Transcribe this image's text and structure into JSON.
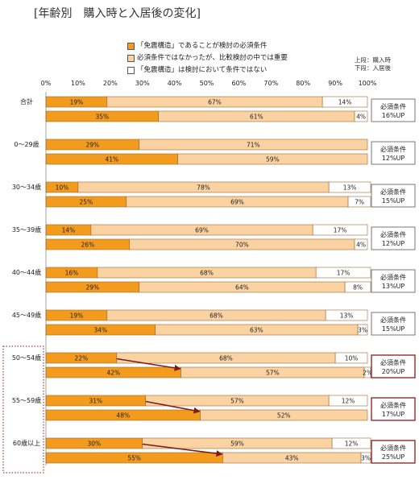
{
  "title": "[年齢別　購入時と入居後の変化]",
  "note": {
    "line1": "上段：購入時",
    "line2": "下段：入居後"
  },
  "colors": {
    "required": "#f39b1d",
    "important": "#fbd3a3",
    "not_considered": "#ffffff",
    "border": "#9a6a30",
    "arrow": "#7b1c1c",
    "highlight_box": "#8b1a1a"
  },
  "chart_data": {
    "type": "bar",
    "orientation": "horizontal-stacked",
    "xlim": [
      0,
      100
    ],
    "xticks": [
      "0%",
      "10%",
      "20%",
      "30%",
      "40%",
      "50%",
      "60%",
      "70%",
      "80%",
      "90%",
      "100%"
    ],
    "series": [
      {
        "name": "「免震構造」であることが検討の必須条件"
      },
      {
        "name": "必須条件ではなかったが、比較検討の中では重要"
      },
      {
        "name": "「免震構造」は検討において条件ではない"
      }
    ],
    "groups": [
      {
        "label": "合計",
        "purchase": [
          19,
          67,
          14
        ],
        "after": [
          35,
          61,
          4
        ],
        "note": [
          "必須条件",
          "16%UP"
        ],
        "highlight": false
      },
      {
        "label": "0～29歳",
        "purchase": [
          29,
          71,
          0
        ],
        "after": [
          41,
          59,
          0
        ],
        "note": [
          "必須条件",
          "12%UP"
        ],
        "highlight": false
      },
      {
        "label": "30～34歳",
        "purchase": [
          10,
          78,
          13
        ],
        "after": [
          25,
          69,
          7
        ],
        "note": [
          "必須条件",
          "15%UP"
        ],
        "highlight": false
      },
      {
        "label": "35～39歳",
        "purchase": [
          14,
          69,
          17
        ],
        "after": [
          26,
          70,
          4
        ],
        "note": [
          "必須条件",
          "12%UP"
        ],
        "highlight": false
      },
      {
        "label": "40～44歳",
        "purchase": [
          16,
          68,
          17
        ],
        "after": [
          29,
          64,
          8
        ],
        "note": [
          "必須条件",
          "13%UP"
        ],
        "highlight": false
      },
      {
        "label": "45～49歳",
        "purchase": [
          19,
          68,
          13
        ],
        "after": [
          34,
          63,
          3
        ],
        "note": [
          "必須条件",
          "15%UP"
        ],
        "highlight": false
      },
      {
        "label": "50～54歳",
        "purchase": [
          22,
          68,
          10
        ],
        "after": [
          42,
          57,
          2
        ],
        "note": [
          "必須条件",
          "20%UP"
        ],
        "highlight": true
      },
      {
        "label": "55～59歳",
        "purchase": [
          31,
          57,
          12
        ],
        "after": [
          48,
          52,
          0
        ],
        "note": [
          "必須条件",
          "17%UP"
        ],
        "highlight": true
      },
      {
        "label": "60歳以上",
        "purchase": [
          30,
          59,
          12
        ],
        "after": [
          55,
          43,
          3
        ],
        "note": [
          "必須条件",
          "25%UP"
        ],
        "highlight": true
      }
    ]
  }
}
